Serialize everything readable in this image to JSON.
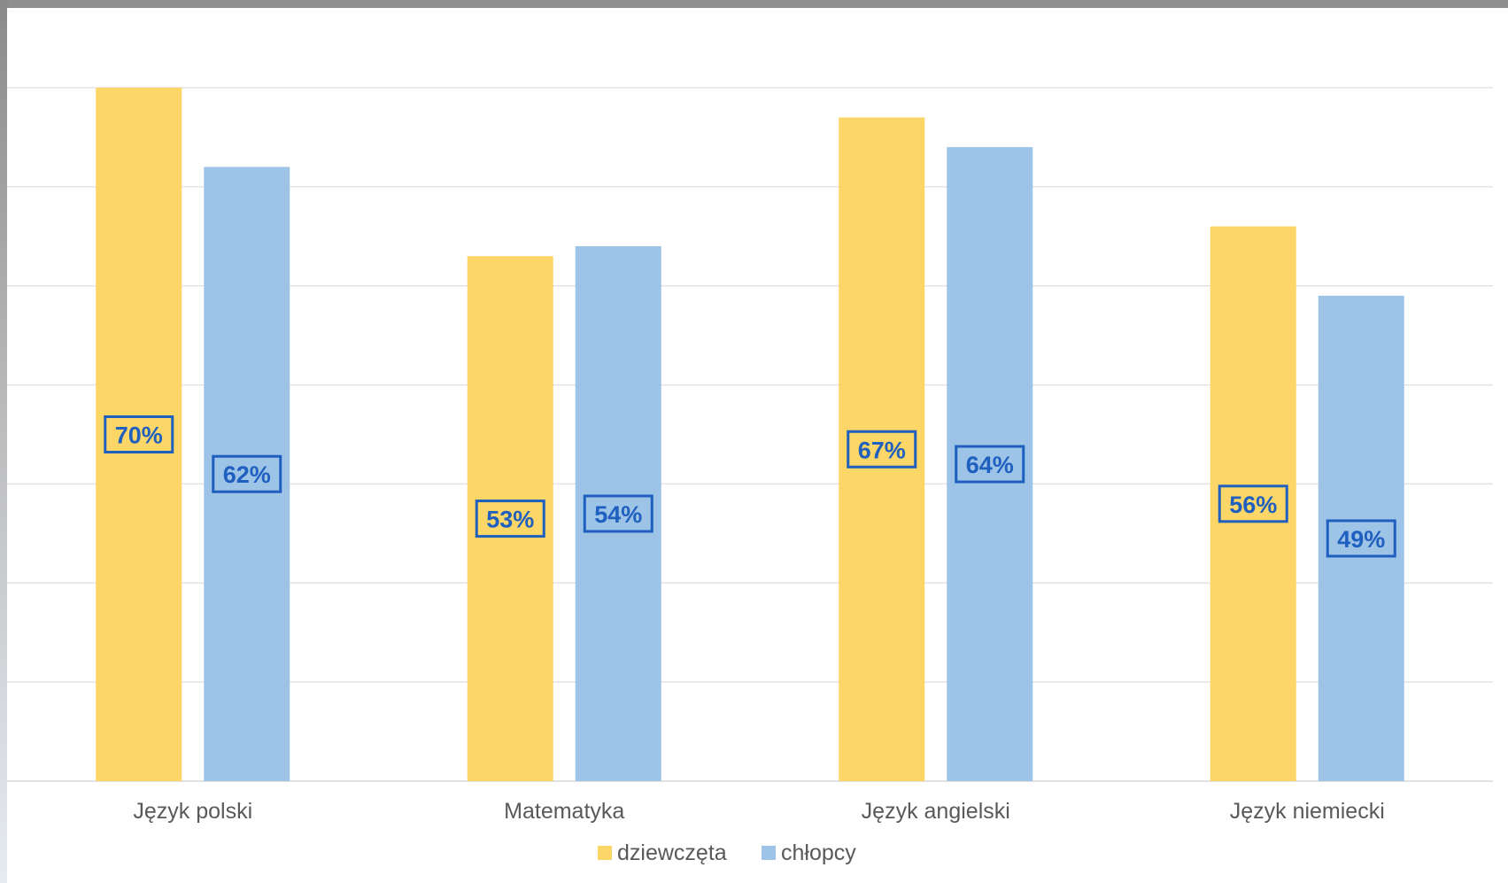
{
  "chart_data": {
    "type": "bar",
    "categories": [
      "Język polski",
      "Matematyka",
      "Język angielski",
      "Język niemiecki"
    ],
    "series": [
      {
        "name": "dziewczęta",
        "values": [
          70,
          53,
          67,
          56
        ],
        "color": "#FCD666",
        "labels": [
          "70%",
          "53%",
          "67%",
          "56%"
        ]
      },
      {
        "name": "chłopcy",
        "values": [
          62,
          54,
          64,
          49
        ],
        "color": "#9DC3E6",
        "labels": [
          "62%",
          "54%",
          "64%",
          "49%"
        ]
      }
    ],
    "ylim": [
      0,
      70
    ],
    "grid": true,
    "legend": "bottom",
    "title": "",
    "xlabel": "",
    "ylabel": "",
    "label_color": "#1F5FBF"
  }
}
